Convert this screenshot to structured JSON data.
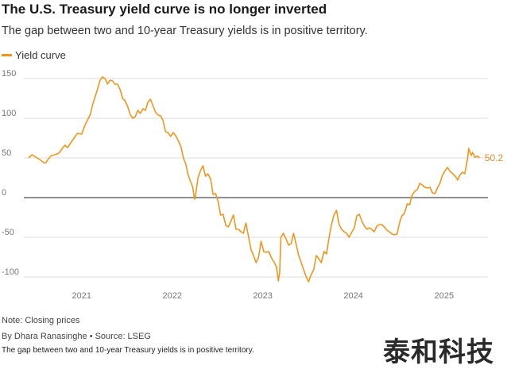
{
  "header": {
    "title": "The U.S. Treasury yield curve is no longer inverted",
    "subtitle": "The gap between two and 10-year Treasury yields is in positive territory."
  },
  "footer": {
    "note": "Note: Closing prices",
    "byline": "By Dhara Ranasinghe",
    "source": "• Source: LSEG",
    "caption": "The gap between two and 10-year Treasury yields is in positive territory.",
    "watermark": "泰和科技"
  },
  "colors": {
    "series": "#f0961e",
    "grid": "#dddddd",
    "zero": "#222222"
  },
  "chart_data": {
    "type": "line",
    "title": "The U.S. Treasury yield curve is no longer inverted",
    "subtitle": "The gap between two and 10-year Treasury yields is in positive territory.",
    "xlabel": "",
    "ylabel": "",
    "ylim": [
      -100,
      150
    ],
    "yticks": [
      -100,
      -50,
      0,
      50,
      100,
      150
    ],
    "xlim": [
      "2020-06-01",
      "2025-06-01"
    ],
    "xticks": [
      {
        "label": "2021",
        "date": "2021-01-01"
      },
      {
        "label": "2022",
        "date": "2022-01-01"
      },
      {
        "label": "2023",
        "date": "2023-01-01"
      },
      {
        "label": "2024",
        "date": "2024-01-01"
      },
      {
        "label": "2025",
        "date": "2025-01-01"
      }
    ],
    "grid": true,
    "legend": "top-left",
    "end_label": "50.2",
    "series": [
      {
        "name": "Yield curve",
        "points": [
          [
            "2020-06-01",
            50
          ],
          [
            "2020-06-15",
            54
          ],
          [
            "2020-06-25",
            52
          ],
          [
            "2020-07-05",
            50
          ],
          [
            "2020-07-20",
            47
          ],
          [
            "2020-08-01",
            44
          ],
          [
            "2020-08-10",
            44
          ],
          [
            "2020-08-20",
            49
          ],
          [
            "2020-09-01",
            53
          ],
          [
            "2020-09-15",
            54
          ],
          [
            "2020-10-01",
            56
          ],
          [
            "2020-10-15",
            62
          ],
          [
            "2020-10-25",
            66
          ],
          [
            "2020-11-05",
            63
          ],
          [
            "2020-11-20",
            70
          ],
          [
            "2020-12-01",
            75
          ],
          [
            "2020-12-15",
            81
          ],
          [
            "2021-01-01",
            80
          ],
          [
            "2021-01-15",
            92
          ],
          [
            "2021-01-25",
            98
          ],
          [
            "2021-02-05",
            105
          ],
          [
            "2021-02-15",
            118
          ],
          [
            "2021-02-25",
            128
          ],
          [
            "2021-03-05",
            136
          ],
          [
            "2021-03-15",
            147
          ],
          [
            "2021-03-25",
            152
          ],
          [
            "2021-04-05",
            150
          ],
          [
            "2021-04-15",
            143
          ],
          [
            "2021-04-25",
            148
          ],
          [
            "2021-05-05",
            147
          ],
          [
            "2021-05-15",
            143
          ],
          [
            "2021-05-25",
            143
          ],
          [
            "2021-06-05",
            136
          ],
          [
            "2021-06-15",
            125
          ],
          [
            "2021-06-25",
            122
          ],
          [
            "2021-07-05",
            115
          ],
          [
            "2021-07-15",
            105
          ],
          [
            "2021-07-25",
            100
          ],
          [
            "2021-08-05",
            102
          ],
          [
            "2021-08-15",
            110
          ],
          [
            "2021-08-25",
            106
          ],
          [
            "2021-09-05",
            112
          ],
          [
            "2021-09-15",
            110
          ],
          [
            "2021-09-25",
            120
          ],
          [
            "2021-10-05",
            124
          ],
          [
            "2021-10-15",
            116
          ],
          [
            "2021-10-25",
            108
          ],
          [
            "2021-11-05",
            104
          ],
          [
            "2021-11-15",
            103
          ],
          [
            "2021-11-25",
            97
          ],
          [
            "2021-12-05",
            83
          ],
          [
            "2021-12-15",
            82
          ],
          [
            "2021-12-25",
            77
          ],
          [
            "2022-01-05",
            82
          ],
          [
            "2022-01-15",
            78
          ],
          [
            "2022-01-25",
            72
          ],
          [
            "2022-02-05",
            64
          ],
          [
            "2022-02-15",
            50
          ],
          [
            "2022-02-25",
            42
          ],
          [
            "2022-03-05",
            30
          ],
          [
            "2022-03-15",
            21
          ],
          [
            "2022-03-25",
            13
          ],
          [
            "2022-04-01",
            -2
          ],
          [
            "2022-04-05",
            3
          ],
          [
            "2022-04-15",
            25
          ],
          [
            "2022-04-25",
            34
          ],
          [
            "2022-05-05",
            40
          ],
          [
            "2022-05-15",
            27
          ],
          [
            "2022-05-25",
            30
          ],
          [
            "2022-06-05",
            23
          ],
          [
            "2022-06-15",
            4
          ],
          [
            "2022-06-25",
            5
          ],
          [
            "2022-07-05",
            -5
          ],
          [
            "2022-07-15",
            -22
          ],
          [
            "2022-07-25",
            -21
          ],
          [
            "2022-08-05",
            -35
          ],
          [
            "2022-08-15",
            -37
          ],
          [
            "2022-08-25",
            -30
          ],
          [
            "2022-09-05",
            -22
          ],
          [
            "2022-09-15",
            -40
          ],
          [
            "2022-09-25",
            -40
          ],
          [
            "2022-10-05",
            -43
          ],
          [
            "2022-10-15",
            -45
          ],
          [
            "2022-10-25",
            -32
          ],
          [
            "2022-11-05",
            -50
          ],
          [
            "2022-11-15",
            -66
          ],
          [
            "2022-11-25",
            -73
          ],
          [
            "2022-12-05",
            -82
          ],
          [
            "2022-12-15",
            -75
          ],
          [
            "2022-12-25",
            -55
          ],
          [
            "2023-01-05",
            -68
          ],
          [
            "2023-01-15",
            -69
          ],
          [
            "2023-01-25",
            -68
          ],
          [
            "2023-02-05",
            -76
          ],
          [
            "2023-02-15",
            -81
          ],
          [
            "2023-02-25",
            -87
          ],
          [
            "2023-03-05",
            -105
          ],
          [
            "2023-03-10",
            -95
          ],
          [
            "2023-03-15",
            -50
          ],
          [
            "2023-03-25",
            -45
          ],
          [
            "2023-04-05",
            -52
          ],
          [
            "2023-04-15",
            -60
          ],
          [
            "2023-04-25",
            -58
          ],
          [
            "2023-05-05",
            -45
          ],
          [
            "2023-05-15",
            -58
          ],
          [
            "2023-05-25",
            -72
          ],
          [
            "2023-06-05",
            -82
          ],
          [
            "2023-06-15",
            -91
          ],
          [
            "2023-06-25",
            -100
          ],
          [
            "2023-07-05",
            -106
          ],
          [
            "2023-07-15",
            -97
          ],
          [
            "2023-07-25",
            -91
          ],
          [
            "2023-08-05",
            -73
          ],
          [
            "2023-08-15",
            -77
          ],
          [
            "2023-08-25",
            -82
          ],
          [
            "2023-09-05",
            -68
          ],
          [
            "2023-09-15",
            -71
          ],
          [
            "2023-09-25",
            -51
          ],
          [
            "2023-10-05",
            -34
          ],
          [
            "2023-10-15",
            -22
          ],
          [
            "2023-10-25",
            -16
          ],
          [
            "2023-11-05",
            -34
          ],
          [
            "2023-11-15",
            -40
          ],
          [
            "2023-11-25",
            -43
          ],
          [
            "2023-12-05",
            -45
          ],
          [
            "2023-12-15",
            -50
          ],
          [
            "2023-12-25",
            -44
          ],
          [
            "2024-01-05",
            -38
          ],
          [
            "2024-01-15",
            -23
          ],
          [
            "2024-01-25",
            -21
          ],
          [
            "2024-02-05",
            -30
          ],
          [
            "2024-02-15",
            -36
          ],
          [
            "2024-02-25",
            -40
          ],
          [
            "2024-03-05",
            -38
          ],
          [
            "2024-03-15",
            -40
          ],
          [
            "2024-03-25",
            -43
          ],
          [
            "2024-04-05",
            -36
          ],
          [
            "2024-04-15",
            -34
          ],
          [
            "2024-04-25",
            -34
          ],
          [
            "2024-05-05",
            -37
          ],
          [
            "2024-05-15",
            -41
          ],
          [
            "2024-05-25",
            -43
          ],
          [
            "2024-06-05",
            -46
          ],
          [
            "2024-06-15",
            -47
          ],
          [
            "2024-06-25",
            -46
          ],
          [
            "2024-07-05",
            -32
          ],
          [
            "2024-07-15",
            -23
          ],
          [
            "2024-07-25",
            -20
          ],
          [
            "2024-08-05",
            -8
          ],
          [
            "2024-08-15",
            -9
          ],
          [
            "2024-08-25",
            3
          ],
          [
            "2024-09-05",
            8
          ],
          [
            "2024-09-15",
            10
          ],
          [
            "2024-09-25",
            18
          ],
          [
            "2024-10-05",
            16
          ],
          [
            "2024-10-15",
            13
          ],
          [
            "2024-10-25",
            12
          ],
          [
            "2024-11-05",
            13
          ],
          [
            "2024-11-15",
            6
          ],
          [
            "2024-11-25",
            5
          ],
          [
            "2024-12-05",
            12
          ],
          [
            "2024-12-15",
            18
          ],
          [
            "2024-12-25",
            28
          ],
          [
            "2025-01-05",
            34
          ],
          [
            "2025-01-15",
            38
          ],
          [
            "2025-01-25",
            33
          ],
          [
            "2025-02-05",
            30
          ],
          [
            "2025-02-15",
            27
          ],
          [
            "2025-02-25",
            22
          ],
          [
            "2025-03-05",
            28
          ],
          [
            "2025-03-15",
            32
          ],
          [
            "2025-03-25",
            30
          ],
          [
            "2025-04-05",
            48
          ],
          [
            "2025-04-10",
            62
          ],
          [
            "2025-04-20",
            53
          ],
          [
            "2025-04-25",
            57
          ],
          [
            "2025-05-05",
            51
          ],
          [
            "2025-05-15",
            52
          ],
          [
            "2025-05-25",
            50.2
          ]
        ]
      }
    ]
  }
}
